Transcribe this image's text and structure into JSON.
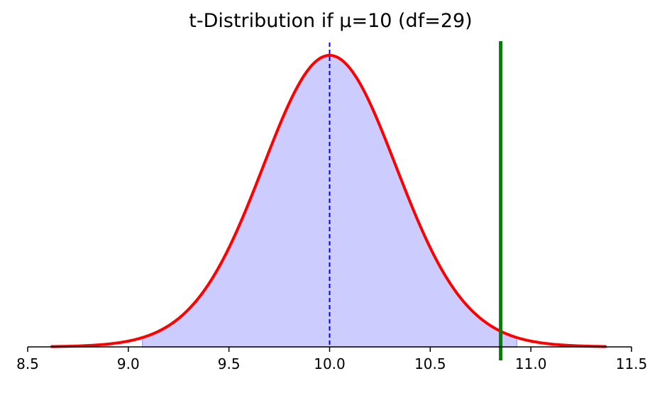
{
  "chart_data": {
    "type": "area",
    "title": "t-Distribution if μ=10 (df=29)",
    "xlabel": "",
    "ylabel": "",
    "xlim": [
      8.5,
      11.5
    ],
    "x_ticks": [
      "8.5",
      "9.0",
      "9.5",
      "10.0",
      "10.5",
      "11.0",
      "11.5"
    ],
    "x_tick_values": [
      8.5,
      9.0,
      9.5,
      10.0,
      10.5,
      11.0,
      11.5
    ],
    "y_axis_visible": false,
    "grid": false,
    "distribution": {
      "kind": "student-t",
      "center": 10.0,
      "scale": 0.34,
      "df": 29,
      "x_range": [
        8.62,
        11.37
      ]
    },
    "shaded_region": {
      "from": 9.07,
      "to": 10.93,
      "color": "#ccccff"
    },
    "curve_color": "#ff0000",
    "mean_line": {
      "x": 10.0,
      "color": "#0000ff",
      "style": "dashed"
    },
    "observed_line": {
      "x": 10.85,
      "color": "#008000"
    }
  }
}
